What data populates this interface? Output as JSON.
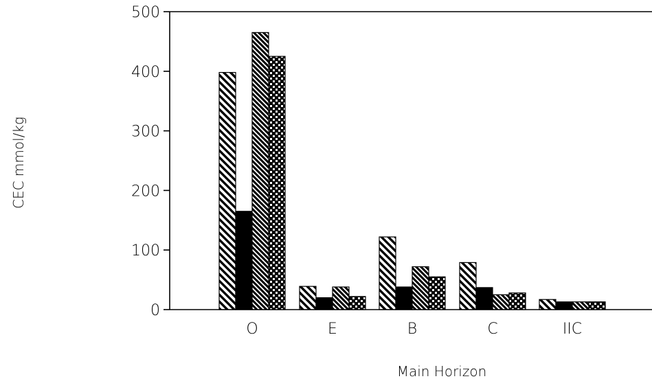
{
  "chart_data": {
    "type": "bar",
    "title": "",
    "xlabel": "Main Horizon",
    "ylabel": "CEC mmol/kg",
    "ylim": [
      0,
      500
    ],
    "yticks": [
      0,
      100,
      200,
      300,
      400,
      500
    ],
    "grid": false,
    "legend": "none",
    "categories": [
      "O",
      "E",
      "B",
      "C",
      "IIC"
    ],
    "series": [
      {
        "values": [
          398,
          39,
          122,
          79,
          17
        ],
        "pattern": "wide-diagonal-hatch"
      },
      {
        "values": [
          165,
          20,
          38,
          37,
          13
        ],
        "pattern": "solid-black"
      },
      {
        "values": [
          465,
          38,
          72,
          25,
          13
        ],
        "pattern": "dense-diagonal-hatch"
      },
      {
        "values": [
          425,
          22,
          55,
          28,
          13
        ],
        "pattern": "checkered"
      }
    ],
    "colors": {
      "ink": "#000000",
      "background": "#ffffff"
    }
  }
}
